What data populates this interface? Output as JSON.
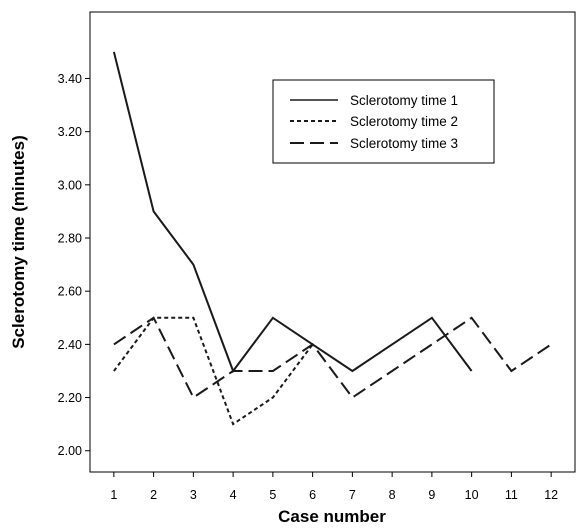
{
  "chart_data": {
    "type": "line",
    "xlabel": "Case number",
    "ylabel": "Sclerotomy time (minutes)",
    "x_ticks": [
      1,
      2,
      3,
      4,
      5,
      6,
      7,
      8,
      9,
      10,
      11,
      12
    ],
    "y_ticks": [
      "2.00",
      "2.20",
      "2.40",
      "2.60",
      "2.80",
      "3.00",
      "3.20",
      "3.40"
    ],
    "xlim": [
      0.4,
      12.6
    ],
    "ylim": [
      1.92,
      3.65
    ],
    "grid": false,
    "legend_position": "top-right",
    "series": [
      {
        "name": "Sclerotomy time 1",
        "style": "solid",
        "points": [
          [
            1,
            3.5
          ],
          [
            2,
            2.9
          ],
          [
            3,
            2.7
          ],
          [
            4,
            2.3
          ],
          [
            5,
            2.5
          ],
          [
            6,
            2.4
          ],
          [
            7,
            2.3
          ],
          [
            8,
            2.4
          ],
          [
            9,
            2.5
          ],
          [
            10,
            2.3
          ]
        ]
      },
      {
        "name": "Sclerotomy time 2",
        "style": "dotted",
        "points": [
          [
            1,
            2.3
          ],
          [
            2,
            2.5
          ],
          [
            3,
            2.5
          ],
          [
            4,
            2.1
          ],
          [
            5,
            2.2
          ],
          [
            6,
            2.4
          ]
        ]
      },
      {
        "name": "Sclerotomy time 3",
        "style": "dashed",
        "points": [
          [
            1,
            2.4
          ],
          [
            2,
            2.5
          ],
          [
            3,
            2.2
          ],
          [
            4,
            2.3
          ],
          [
            5,
            2.3
          ],
          [
            6,
            2.4
          ],
          [
            7,
            2.2
          ],
          [
            8,
            2.3
          ],
          [
            9,
            2.4
          ],
          [
            10,
            2.5
          ],
          [
            11,
            2.3
          ],
          [
            12,
            2.4
          ]
        ]
      }
    ]
  }
}
